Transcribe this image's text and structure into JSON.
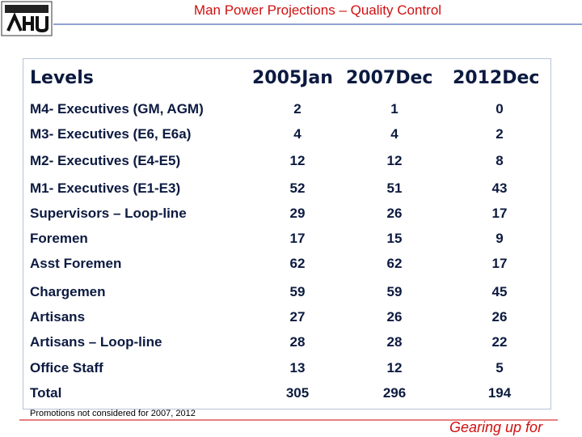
{
  "header": {
    "title": "Man Power Projections – Quality Control"
  },
  "table": {
    "columns": [
      "Levels",
      "2005Jan",
      "2007Dec",
      "2012Dec"
    ],
    "rows": [
      [
        "M4- Executives (GM, AGM)",
        2,
        1,
        0
      ],
      [
        "M3- Executives (E6, E6a)",
        4,
        4,
        2
      ],
      [
        "M2- Executives (E4-E5)",
        12,
        12,
        8
      ],
      [
        "M1- Executives (E1-E3)",
        52,
        51,
        43
      ],
      [
        "Supervisors – Loop-line",
        29,
        26,
        17
      ],
      [
        "Foremen",
        17,
        15,
        9
      ],
      [
        "Asst Foremen",
        62,
        62,
        17
      ],
      [
        "Chargemen",
        59,
        59,
        45
      ],
      [
        "Artisans",
        27,
        26,
        26
      ],
      [
        "Artisans – Loop-line",
        28,
        28,
        22
      ],
      [
        "Office Staff",
        13,
        12,
        5
      ],
      [
        "Total",
        305,
        296,
        194
      ]
    ]
  },
  "footnote": "Promotions not considered for 2007, 2012",
  "footer": {
    "tagline": "Gearing up for"
  }
}
